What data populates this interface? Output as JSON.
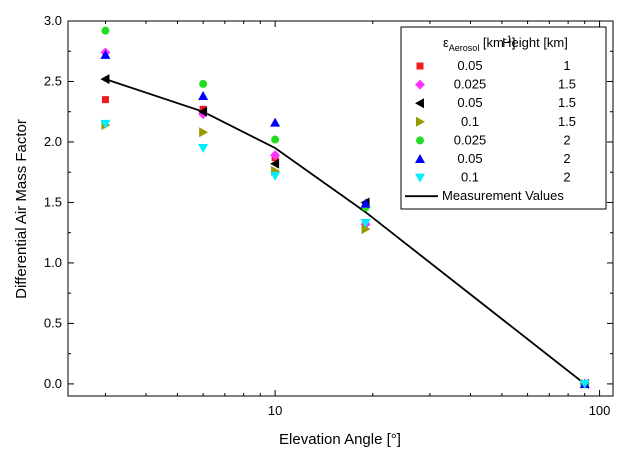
{
  "chart_data": {
    "type": "scatter",
    "xlabel": "Elevation Angle [°]",
    "ylabel": "Differential Air Mass Factor",
    "x_scale": "log",
    "xlim": [
      2.3,
      110
    ],
    "ylim": [
      -0.1,
      3.0
    ],
    "x_ticks": [
      10,
      100
    ],
    "x_tick_labels": [
      "10",
      "100"
    ],
    "y_ticks": [
      0.0,
      0.5,
      1.0,
      1.5,
      2.0,
      2.5,
      3.0
    ],
    "y_tick_labels": [
      "0.0",
      "0.5",
      "1.0",
      "1.5",
      "2.0",
      "2.5",
      "3.0"
    ],
    "legend": {
      "placement": "top-right",
      "header_col1_main": "ε",
      "header_col1_sub": "Aerosol",
      "header_col1_unit_pre": " [km",
      "header_col1_unit_sup": "-1",
      "header_col1_unit_post": "]",
      "header_col2": "Height [km]"
    },
    "series": [
      {
        "label_eps": "0.05",
        "label_height": "1",
        "marker": "square",
        "color": "#ee1c1c",
        "x": [
          3,
          6,
          10,
          19,
          90
        ],
        "y": [
          2.35,
          2.27,
          1.87,
          1.47,
          0.0
        ]
      },
      {
        "label_eps": "0.025",
        "label_height": "1.5",
        "marker": "diamond",
        "color": "#ff33ff",
        "x": [
          3,
          6,
          10,
          19,
          90
        ],
        "y": [
          2.74,
          2.23,
          1.89,
          1.32,
          0.0
        ]
      },
      {
        "label_eps": "0.05",
        "label_height": "1.5",
        "marker": "triangle-left",
        "color": "#000000",
        "x": [
          3,
          6,
          10,
          19,
          90
        ],
        "y": [
          2.52,
          2.25,
          1.82,
          1.5,
          0.0
        ]
      },
      {
        "label_eps": "0.1",
        "label_height": "1.5",
        "marker": "triangle-right",
        "color": "#999900",
        "x": [
          3,
          6,
          10,
          19,
          90
        ],
        "y": [
          2.14,
          2.08,
          1.76,
          1.28,
          0.0
        ]
      },
      {
        "label_eps": "0.025",
        "label_height": "2",
        "marker": "circle",
        "color": "#22dd22",
        "x": [
          3,
          6,
          10,
          19,
          90
        ],
        "y": [
          2.92,
          2.48,
          2.02,
          1.46,
          0.0
        ]
      },
      {
        "label_eps": "0.05",
        "label_height": "2",
        "marker": "triangle-up",
        "color": "#0000ff",
        "x": [
          3,
          6,
          10,
          19,
          90
        ],
        "y": [
          2.72,
          2.38,
          2.16,
          1.49,
          0.0
        ]
      },
      {
        "label_eps": "0.1",
        "label_height": "2",
        "marker": "triangle-down",
        "color": "#00eeff",
        "x": [
          3,
          6,
          10,
          19,
          90
        ],
        "y": [
          2.15,
          1.95,
          1.72,
          1.33,
          0.0
        ]
      }
    ],
    "line": {
      "name": "Measurement Values",
      "color": "#000000",
      "x": [
        3,
        6,
        10,
        19,
        90
      ],
      "y": [
        2.52,
        2.25,
        1.95,
        1.42,
        0.0
      ]
    }
  }
}
